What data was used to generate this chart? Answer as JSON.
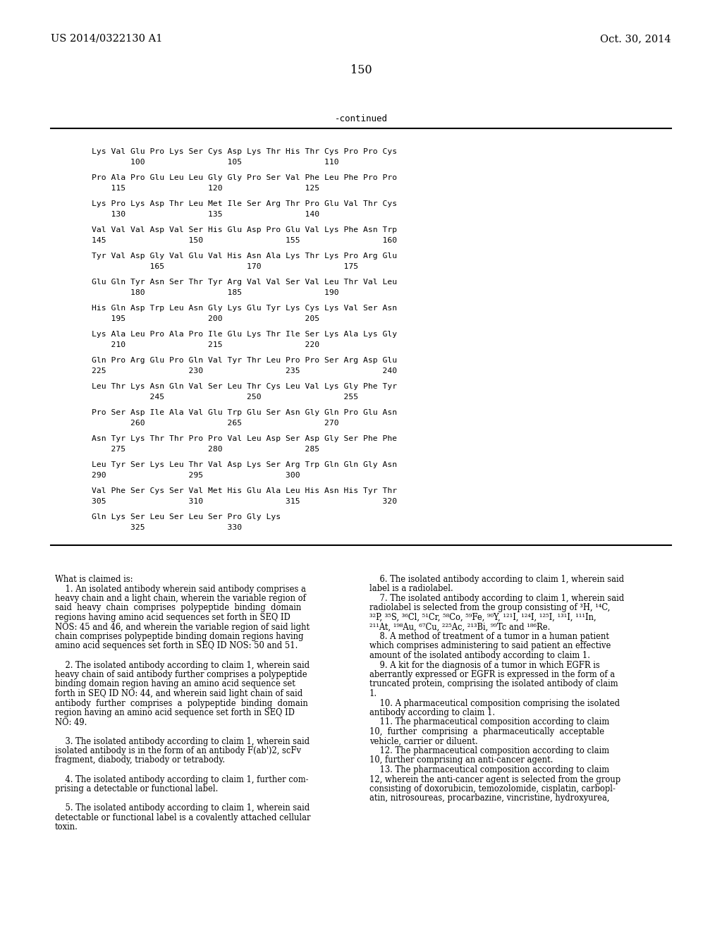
{
  "header_left": "US 2014/0322130 A1",
  "header_right": "Oct. 30, 2014",
  "page_number": "150",
  "continued_label": "-continued",
  "sequence_lines": [
    [
      "Lys Val Glu Pro Lys Ser Cys Asp Lys Thr His Thr Cys Pro Pro Cys",
      "        100                 105                 110"
    ],
    [
      "Pro Ala Pro Glu Leu Leu Gly Gly Pro Ser Val Phe Leu Phe Pro Pro",
      "    115                 120                 125"
    ],
    [
      "Lys Pro Lys Asp Thr Leu Met Ile Ser Arg Thr Pro Glu Val Thr Cys",
      "    130                 135                 140"
    ],
    [
      "Val Val Val Asp Val Ser His Glu Asp Pro Glu Val Lys Phe Asn Trp",
      "145                 150                 155                 160"
    ],
    [
      "Tyr Val Asp Gly Val Glu Val His Asn Ala Lys Thr Lys Pro Arg Glu",
      "            165                 170                 175"
    ],
    [
      "Glu Gln Tyr Asn Ser Thr Tyr Arg Val Val Ser Val Leu Thr Val Leu",
      "        180                 185                 190"
    ],
    [
      "His Gln Asp Trp Leu Asn Gly Lys Glu Tyr Lys Cys Lys Val Ser Asn",
      "    195                 200                 205"
    ],
    [
      "Lys Ala Leu Pro Ala Pro Ile Glu Lys Thr Ile Ser Lys Ala Lys Gly",
      "    210                 215                 220"
    ],
    [
      "Gln Pro Arg Glu Pro Gln Val Tyr Thr Leu Pro Pro Ser Arg Asp Glu",
      "225                 230                 235                 240"
    ],
    [
      "Leu Thr Lys Asn Gln Val Ser Leu Thr Cys Leu Val Lys Gly Phe Tyr",
      "            245                 250                 255"
    ],
    [
      "Pro Ser Asp Ile Ala Val Glu Trp Glu Ser Asn Gly Gln Pro Glu Asn",
      "        260                 265                 270"
    ],
    [
      "Asn Tyr Lys Thr Thr Pro Pro Val Leu Asp Ser Asp Gly Ser Phe Phe",
      "    275                 280                 285"
    ],
    [
      "Leu Tyr Ser Lys Leu Thr Val Asp Lys Ser Arg Trp Gln Gln Gly Asn",
      "290                 295                 300"
    ],
    [
      "Val Phe Ser Cys Ser Val Met His Glu Ala Leu His Asn His Tyr Thr",
      "305                 310                 315                 320"
    ],
    [
      "Gln Lys Ser Leu Ser Leu Ser Pro Gly Lys",
      "        325                 330"
    ]
  ],
  "claims_left": [
    "What is claimed is:",
    "    1. An isolated antibody wherein said antibody comprises a",
    "heavy chain and a light chain, wherein the variable region of",
    "said  heavy  chain  comprises  polypeptide  binding  domain",
    "regions having amino acid sequences set forth in SEQ ID",
    "NOS: 45 and 46, and wherein the variable region of said light",
    "chain comprises polypeptide binding domain regions having",
    "amino acid sequences set forth in SEQ ID NOS: 50 and 51.",
    "",
    "    2. The isolated antibody according to claim 1, wherein said",
    "heavy chain of said antibody further comprises a polypeptide",
    "binding domain region having an amino acid sequence set",
    "forth in SEQ ID NO: 44, and wherein said light chain of said",
    "antibody  further  comprises  a  polypeptide  binding  domain",
    "region having an amino acid sequence set forth in SEQ ID",
    "NO: 49.",
    "",
    "    3. The isolated antibody according to claim 1, wherein said",
    "isolated antibody is in the form of an antibody F(ab')2, scFv",
    "fragment, diabody, triabody or tetrabody.",
    "",
    "    4. The isolated antibody according to claim 1, further com-",
    "prising a detectable or functional label.",
    "",
    "    5. The isolated antibody according to claim 1, wherein said",
    "detectable or functional label is a covalently attached cellular",
    "toxin."
  ],
  "claims_right": [
    "    6. The isolated antibody according to claim 1, wherein said",
    "label is a radiolabel.",
    "    7. The isolated antibody according to claim 1, wherein said",
    "radiolabel is selected from the group consisting of ³H, ¹⁴C,",
    "³²P, ³⁵S, ³⁶Cl, ⁵¹Cr, ⁵⁸Co, ⁵⁹Fe, ⁹⁰Y, ¹²¹I, ¹²⁴I, ¹²⁵I, ¹³¹I, ¹¹¹In,",
    "²¹¹At, ¹⁹⁸Au, ⁶⁷Cu, ²²⁵Ac, ²¹³Bi, ⁹⁹Tc and ¹⁸⁶Re.",
    "    8. A method of treatment of a tumor in a human patient",
    "which comprises administering to said patient an effective",
    "amount of the isolated antibody according to claim 1.",
    "    9. A kit for the diagnosis of a tumor in which EGFR is",
    "aberrantly expressed or EGFR is expressed in the form of a",
    "truncated protein, comprising the isolated antibody of claim",
    "1.",
    "    10. A pharmaceutical composition comprising the isolated",
    "antibody according to claim 1.",
    "    11. The pharmaceutical composition according to claim",
    "10,  further  comprising  a  pharmaceutically  acceptable",
    "vehicle, carrier or diluent.",
    "    12. The pharmaceutical composition according to claim",
    "10, further comprising an anti-cancer agent.",
    "    13. The pharmaceutical composition according to claim",
    "12, wherein the anti-cancer agent is selected from the group",
    "consisting of doxorubicin, temozolomide, cisplatin, carbopl-",
    "atin, nitrosoureas, procarbazine, vincristine, hydroxyurea,"
  ],
  "background_color": "#ffffff",
  "text_color": "#000000",
  "header_fontsize": 10.5,
  "page_num_fontsize": 11.5,
  "continued_fontsize": 9.0,
  "seq_fontsize": 8.2,
  "claims_fontsize": 8.3
}
